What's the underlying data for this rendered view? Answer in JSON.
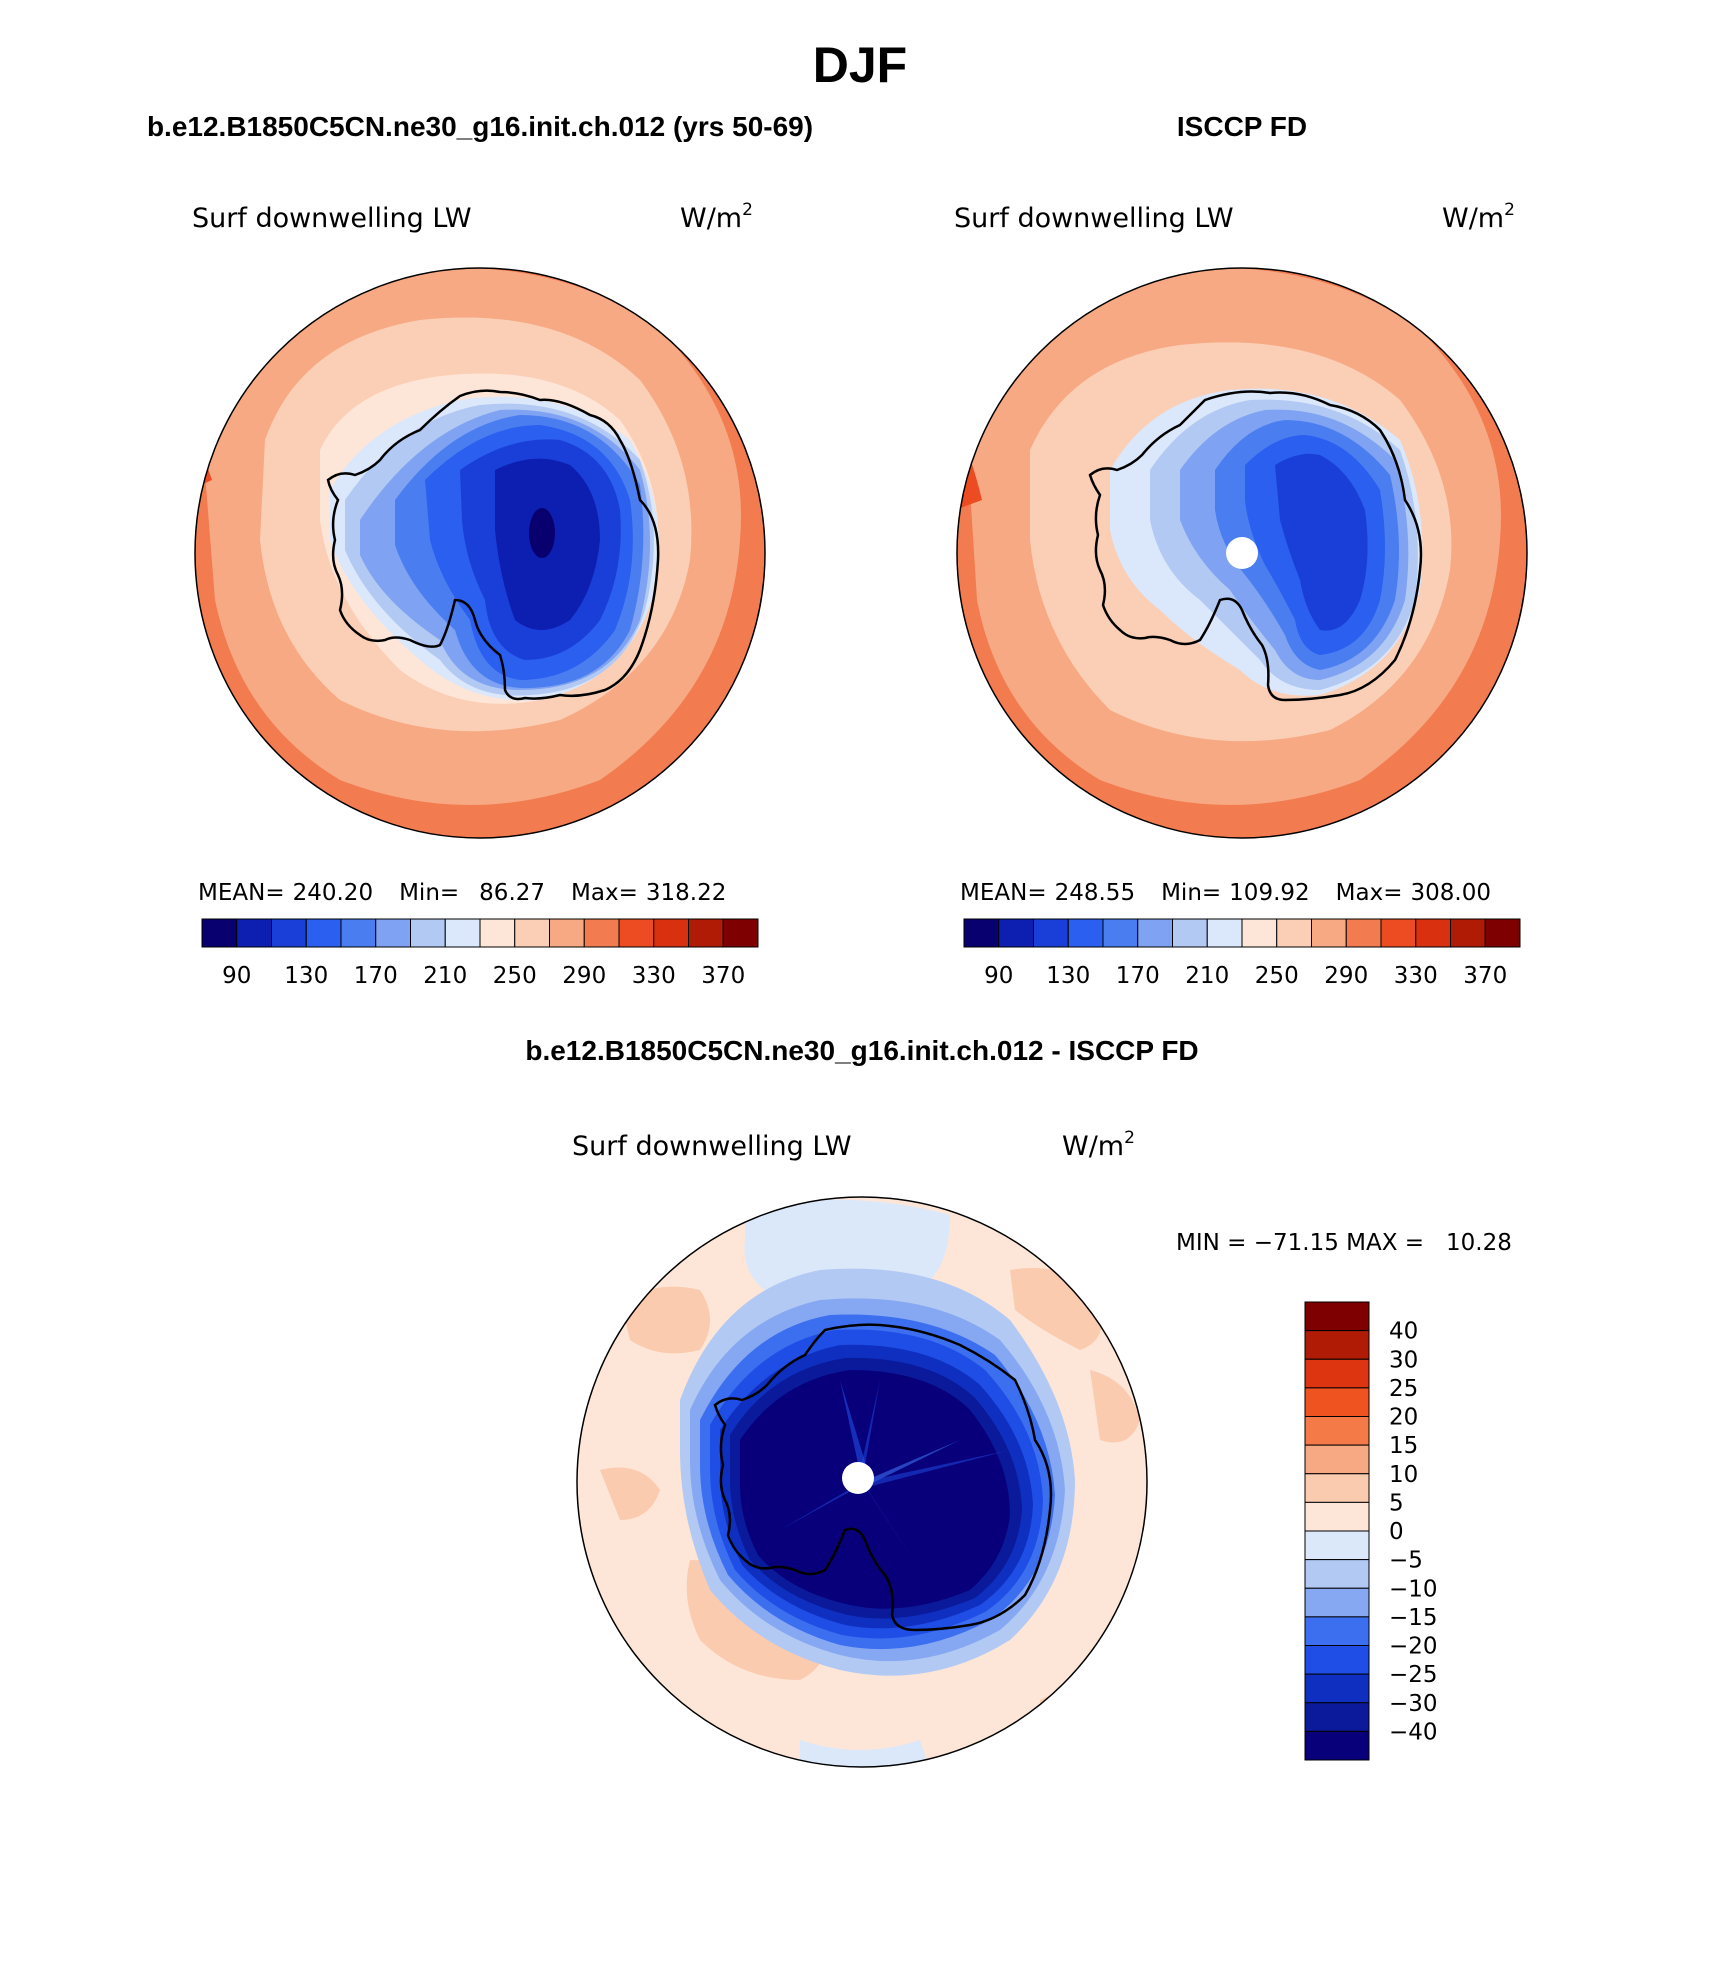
{
  "title": "DJF",
  "panels": {
    "left": {
      "case_title": "b.e12.B1850C5CN.ne30_g16.init.ch.012 (yrs 50-69)",
      "variable": "Surf downwelling LW",
      "units": "W/m",
      "units_sup": "2",
      "stats": {
        "mean_label": "MEAN=",
        "mean": "240.20",
        "min_label": "Min=",
        "min": "86.27",
        "max_label": "Max=",
        "max": "318.22"
      }
    },
    "right": {
      "case_title": "ISCCP FD",
      "variable": "Surf downwelling LW",
      "units": "W/m",
      "units_sup": "2",
      "stats": {
        "mean_label": "MEAN=",
        "mean": "248.55",
        "min_label": "Min=",
        "min": "109.92",
        "max_label": "Max=",
        "max": "308.00"
      }
    },
    "diff": {
      "case_title": "b.e12.B1850C5CN.ne30_g16.init.ch.012 - ISCCP FD",
      "variable": "Surf downwelling LW",
      "units": "W/m",
      "units_sup": "2",
      "minmax": "MIN = −71.15 MAX =   10.28"
    }
  },
  "colorbars": {
    "abs": {
      "colors": [
        "#08006f",
        "#0d1fb1",
        "#1a3fd8",
        "#2a5ff0",
        "#4a7ef0",
        "#7fa3f2",
        "#b2c9f4",
        "#dbe7fa",
        "#fde6d8",
        "#fbcfb6",
        "#f7a983",
        "#f27b50",
        "#ed4c22",
        "#d9300f",
        "#b01b06",
        "#7f0000"
      ],
      "labels": [
        "90",
        "130",
        "170",
        "210",
        "250",
        "290",
        "330",
        "370"
      ]
    },
    "diff": {
      "colors": [
        "#08007a",
        "#0a1a9a",
        "#0f2fc0",
        "#1f4ee6",
        "#3c6ff0",
        "#86a8f2",
        "#b2c9f4",
        "#dbe8fa",
        "#fde6d8",
        "#fbcbb0",
        "#f7a983",
        "#f47a48",
        "#ef5420",
        "#dc3510",
        "#b01b06",
        "#7f0000"
      ],
      "labels": [
        "40",
        "30",
        "25",
        "20",
        "15",
        "10",
        "5",
        "0",
        "−5",
        "−10",
        "−15",
        "−20",
        "−25",
        "−30",
        "−40"
      ]
    }
  }
}
